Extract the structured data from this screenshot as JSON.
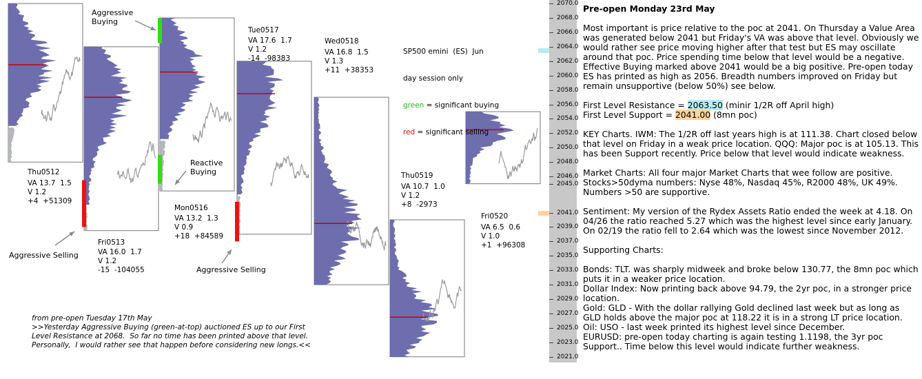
{
  "colors": {
    "buy": "#33dd11",
    "sell": "#ee1111",
    "profile": "#6666aa",
    "profile_light": "#b4b8bc",
    "poc": "#cc0000",
    "price": "#9a9a9a"
  },
  "chart_data": {
    "type": "market-profile",
    "instrument": "SP500 emini (ES)",
    "ylim": [
      2020.5,
      2070.2
    ],
    "sessions": [
      {
        "id": "Thu0512",
        "label": "Thu0512",
        "stats": [
          "VA 13.7  1.5",
          "V 1.2",
          "+4  +51309"
        ],
        "high": 2070.0,
        "low": 2048.0,
        "poc": 2061.5,
        "va_low": 2053.0,
        "markers": []
      },
      {
        "id": "Fri0513",
        "label": "Fri0513",
        "stats": [
          "VA 16.0  1.7",
          "V 1.2",
          "-15  -104055"
        ],
        "high": 2064.0,
        "low": 2038.5,
        "poc": 2057.0,
        "va_low": 2042.0,
        "markers": [
          {
            "type": "sell",
            "from": 2039.0,
            "to": 2045.5
          }
        ]
      },
      {
        "id": "Mon0516",
        "label": "Mon0516",
        "stats": [
          "VA 13.2  1.3",
          "V 0.9",
          "+18  +84589"
        ],
        "high": 2068.0,
        "low": 2044.0,
        "poc": 2060.5,
        "va_low": 2051.0,
        "markers": [
          {
            "type": "buy",
            "from": 2064.5,
            "to": 2068.0
          },
          {
            "type": "buy",
            "from": 2045.0,
            "to": 2049.0
          }
        ]
      },
      {
        "id": "Tue0517",
        "label": "Tue0517",
        "stats": [
          "VA 17.6  1.7",
          "V 1.2",
          "-14  -98383"
        ],
        "high": 2062.0,
        "low": 2038.0,
        "poc": 2057.5,
        "va_low": 2043.5,
        "markers": [
          {
            "type": "sell",
            "from": 2037.0,
            "to": 2042.5
          }
        ]
      },
      {
        "id": "Wed0518",
        "label": "Wed0518",
        "stats": [
          "VA 16.8  1.5",
          "V 1.3",
          "+11  +38353"
        ],
        "high": 2057.0,
        "low": 2031.0,
        "poc": 2039.5,
        "va_low": 2031.0,
        "markers": []
      },
      {
        "id": "Thu0519",
        "label": "Thu0519",
        "stats": [
          "VA 10.7  1.0",
          "V 1.2",
          "+8  -2973"
        ],
        "high": 2040.0,
        "low": 2021.0,
        "poc": 2026.5,
        "va_low": 2021.0,
        "markers": []
      },
      {
        "id": "Fri0520",
        "label": "Fri0520",
        "stats": [
          "VA 6.5  0.6",
          "V 1.0",
          "+1  +96308"
        ],
        "high": 2055.0,
        "low": 2045.0,
        "poc": 2052.5,
        "va_low": 2045.0,
        "markers": []
      }
    ],
    "annotations": [
      {
        "id": "aggressive-buying",
        "text": "Aggressive\nBuying"
      },
      {
        "id": "reactive-buying",
        "text": "Reactive\nBuying"
      },
      {
        "id": "aggressive-selling-1",
        "text": "Aggressive Selling"
      },
      {
        "id": "aggressive-selling-2",
        "text": "Aggressive Selling"
      }
    ],
    "legend": {
      "line1": "SP500 emini  (ES)  Jun",
      "line2": "day session only",
      "green_word": "green",
      "green_text": " = significant buying",
      "red_word": "red",
      "red_text": " = significant selling"
    },
    "axis_ticks": [
      "2070.0",
      "2068.0",
      "2066.0",
      "2064.0",
      "2062.0",
      "2060.0",
      "2058.0",
      "2056.0",
      "2054.0",
      "2052.0",
      "2050.0",
      "2048.0",
      "2046.0",
      "2045.0",
      "2041.0",
      "2039.0",
      "2037.0",
      "2035.0",
      "2033.0",
      "2031.0",
      "2029.0",
      "2027.0",
      "2025.0",
      "2023.0",
      "2021.0"
    ],
    "tick_values": [
      2070,
      2068,
      2066,
      2064,
      2062,
      2060,
      2058,
      2056,
      2054,
      2052,
      2050,
      2048,
      2046,
      2045,
      2041,
      2039,
      2037,
      2035,
      2033,
      2031,
      2029,
      2027,
      2025,
      2023,
      2021
    ],
    "highlights": [
      {
        "type": "resistance",
        "value": 2063.5
      },
      {
        "type": "support",
        "value": 2041.0
      }
    ]
  },
  "note": "from pre-open Tuesday 17th May\n>>Yesterday Aggressive Buying (green-at-top) auctioned ES up to our First\nLevel Resistance at 2068.  So far no time has been printed above that level.\nPersonally,  I would rather see that happen before considering new longs.<<",
  "commentary": {
    "title": "Pre-open Monday 23rd May",
    "p1": "Most important is price relative to the poc at 2041.  On Thursday a Value Area was generated below 2041 but Friday's VA was above that level. Obviously we would rather see price moving higher after that test but ES may oscillate around that poc. Price spending time below that level would be a negative. Effective Buying marked above 2041 would be a big positive. Pre-open today ES has printed as high as 2056.  Breadth numbers improved on Friday but remain unsupportive (below 50%) see below.",
    "res_prefix": "First Level Resistance = ",
    "res_value": "2063.50",
    "res_suffix": " (minir 1/2R off April high)",
    "sup_prefix": "First Level Support = ",
    "sup_value": "2041.00",
    "sup_suffix": " (8mn poc)",
    "p3": "KEY Charts. IWM: The 1/2R off last years high is at 111.38.  Chart closed below that level on Friday in a weak price location.  QQQ: Major poc is at 105.13. This has been Support recently. Price below that level would indicate weakness.",
    "p4": "Market Charts: All four major Market Charts that wee follow are positive. Stocks>50dyma numbers: Nyse 48%, Nasdaq 45%, R2000 48%,  UK 49%.  Numbers >50 are supportive.",
    "p5": "Sentiment: My version of the Rydex Assets Ratio ended the week at 4.18.  On 04/26 the ratio reached 5.27 which was the highest level since early January.  On 02/19 the ratio fell to 2.64 which was the lowest since November 2012.",
    "p6": "Supporting Charts:",
    "p7a": "Bonds: TLT. was sharply midweek and broke below 130.77, the 8mn poc which puts it in a weaker price location.",
    "p7b": "Dollar Index: Now printing back above 94.79, the 2yr poc, in a stronger price location.",
    "p7c": "Gold: GLD - With the dollar rallying Gold declined last week but as long as GLD holds above the major poc at 118.22 it is in a strong LT price location.",
    "p7d": "Oil: USO - last week printed its highest level since December.",
    "p7e": "EURUSD: pre-open today charting is again testing 1.1198, the 3yr poc Support..  Time below this level would indicate further weakness."
  }
}
